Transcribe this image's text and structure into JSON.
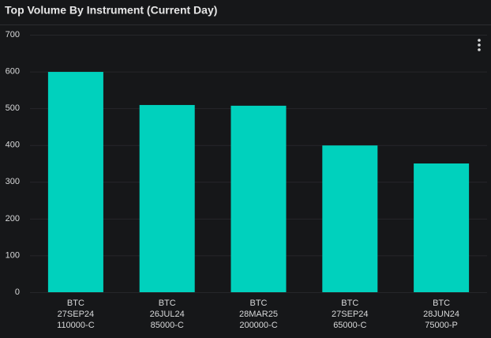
{
  "chart_data": {
    "type": "bar",
    "title": "Top Volume By Instrument (Current Day)",
    "categories": [
      [
        "BTC",
        "27SEP24",
        "110000-C"
      ],
      [
        "BTC",
        "26JUL24",
        "85000-C"
      ],
      [
        "BTC",
        "28MAR25",
        "200000-C"
      ],
      [
        "BTC",
        "27SEP24",
        "65000-C"
      ],
      [
        "BTC",
        "28JUN24",
        "75000-P"
      ]
    ],
    "values": [
      599,
      509,
      507,
      399,
      350
    ],
    "color": "#00d1bd",
    "ylim": [
      0,
      700
    ],
    "yticks": [
      0,
      100,
      200,
      300,
      400,
      500,
      600,
      700
    ],
    "grid": true
  }
}
